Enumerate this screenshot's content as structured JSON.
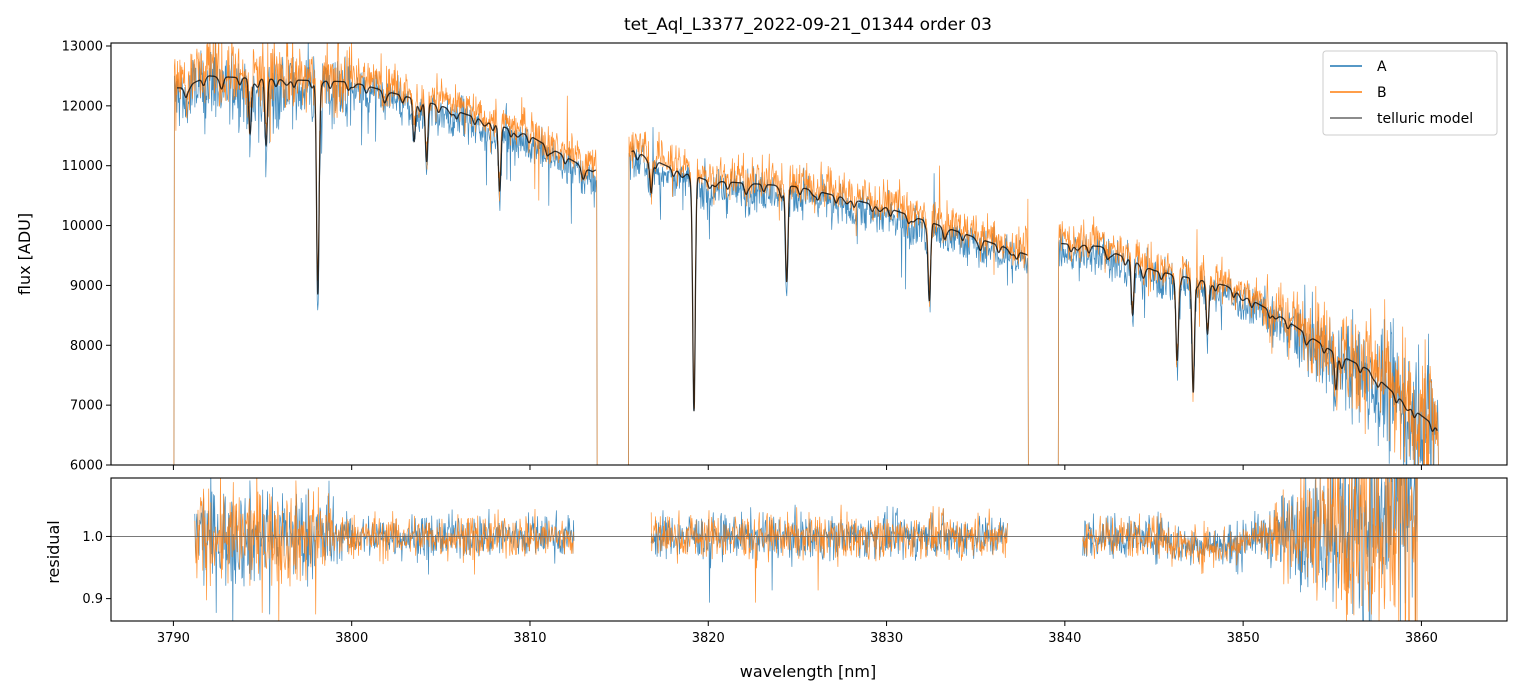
{
  "chart_data": [
    {
      "type": "line",
      "title": "tet_Aql_L3377_2022-09-21_01344  order 03",
      "xlabel": "",
      "ylabel": "flux [ADU]",
      "xlim": [
        3786.5,
        3864.8
      ],
      "ylim": [
        6000,
        13050
      ],
      "xticks": [
        3790,
        3800,
        3810,
        3820,
        3830,
        3840,
        3850,
        3860
      ],
      "yticks": [
        6000,
        7000,
        8000,
        9000,
        10000,
        11000,
        12000,
        13000
      ],
      "ytick_labels": [
        "6000",
        "7000",
        "8000",
        "9000",
        "10000",
        "11000",
        "12000",
        "13000"
      ],
      "legend": {
        "placement": "top-right",
        "entries": [
          "A",
          "B",
          "telluric model"
        ]
      },
      "series": [
        {
          "name": "A",
          "color": "#1f77b4",
          "segments": [
            [
              3790.0,
              3813.8
            ],
            [
              3815.5,
              3838.0
            ],
            [
              3839.6,
              3861.0
            ]
          ]
        },
        {
          "name": "B",
          "color": "#ff7f0e",
          "segments": [
            [
              3790.0,
              3813.8
            ],
            [
              3815.5,
              3838.0
            ],
            [
              3839.6,
              3861.0
            ]
          ]
        },
        {
          "name": "telluric model",
          "color": "#000000",
          "continuum_points": [
            [
              3790.5,
              12300
            ],
            [
              3792,
              12500
            ],
            [
              3795,
              12450
            ],
            [
              3800,
              12400
            ],
            [
              3805,
              12000
            ],
            [
              3810,
              11500
            ],
            [
              3812,
              11150
            ],
            [
              3813.5,
              10900
            ],
            [
              3815.8,
              11250
            ],
            [
              3818,
              10950
            ],
            [
              3820,
              10750
            ],
            [
              3825,
              10650
            ],
            [
              3830,
              10300
            ],
            [
              3835,
              9800
            ],
            [
              3838,
              9500
            ],
            [
              3839.8,
              9700
            ],
            [
              3842,
              9650
            ],
            [
              3845,
              9250
            ],
            [
              3849,
              9000
            ],
            [
              3852,
              8500
            ],
            [
              3855,
              7900
            ],
            [
              3857,
              7600
            ],
            [
              3859,
              7050
            ],
            [
              3861,
              6600
            ]
          ],
          "absorption_lines": [
            [
              3794.3,
              900
            ],
            [
              3795.2,
              1100
            ],
            [
              3798.1,
              3500
            ],
            [
              3803.5,
              700
            ],
            [
              3804.2,
              1000
            ],
            [
              3808.3,
              1100
            ],
            [
              3816.8,
              500
            ],
            [
              3819.2,
              3900
            ],
            [
              3824.4,
              1600
            ],
            [
              3832.4,
              1300
            ],
            [
              3843.8,
              900
            ],
            [
              3846.3,
              1300
            ],
            [
              3847.2,
              1900
            ],
            [
              3848.0,
              800
            ],
            [
              3855.2,
              600
            ]
          ]
        }
      ]
    },
    {
      "type": "line",
      "title": "",
      "xlabel": "wavelength [nm]",
      "ylabel": "residual",
      "xlim": [
        3786.5,
        3864.8
      ],
      "ylim": [
        0.864,
        1.094
      ],
      "xticks": [
        3790,
        3800,
        3810,
        3820,
        3830,
        3840,
        3850,
        3860
      ],
      "xtick_labels": [
        "3790",
        "3800",
        "3810",
        "3820",
        "3830",
        "3840",
        "3850",
        "3860"
      ],
      "yticks": [
        0.9,
        1.0
      ],
      "ytick_labels": [
        "0.9",
        "1.0"
      ],
      "reference_line": 1.0,
      "series": [
        {
          "name": "A",
          "color": "#1f77b4",
          "segments": [
            [
              3791.2,
              3812.5
            ],
            [
              3816.8,
              3836.8
            ],
            [
              3841.0,
              3859.8
            ]
          ]
        },
        {
          "name": "B",
          "color": "#ff7f0e",
          "segments": [
            [
              3791.2,
              3812.5
            ],
            [
              3816.8,
              3836.8
            ],
            [
              3841.0,
              3859.8
            ]
          ]
        }
      ]
    }
  ]
}
